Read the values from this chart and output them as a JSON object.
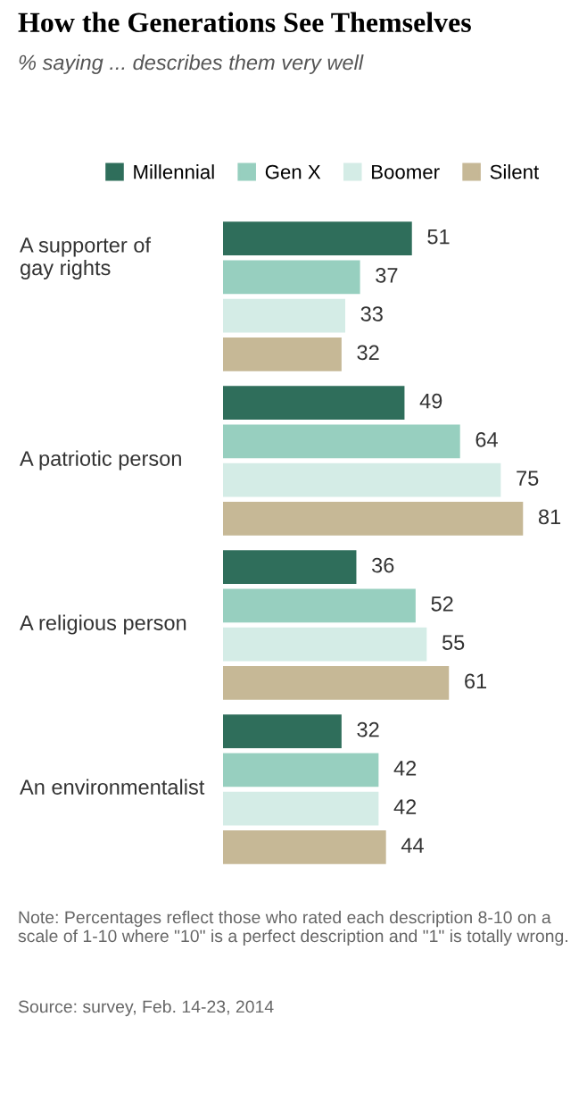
{
  "chart_data": {
    "type": "bar",
    "orientation": "horizontal",
    "title": "How the Generations See Themselves",
    "subtitle": "% saying ... describes them very well",
    "categories": [
      "A supporter of\ngay rights",
      "A patriotic person",
      "A religious person",
      "An environmentalist"
    ],
    "series": [
      {
        "name": "Millennial",
        "color": "#2f6e5b",
        "values": [
          51,
          49,
          36,
          32
        ]
      },
      {
        "name": "Gen X",
        "color": "#97cfbf",
        "values": [
          37,
          64,
          52,
          42
        ]
      },
      {
        "name": "Boomer",
        "color": "#d4ece6",
        "values": [
          33,
          75,
          55,
          42
        ]
      },
      {
        "name": "Silent",
        "color": "#c6b896",
        "values": [
          32,
          81,
          61,
          44
        ]
      }
    ],
    "data_labels": true,
    "legend": "top",
    "annotations": [
      "Note: Percentages reflect those who rated each description 8-10 on a scale of 1-10 where \"10\" is a perfect description and \"1\" is totally wrong.",
      "Source: survey, Feb. 14-23, 2014"
    ]
  }
}
